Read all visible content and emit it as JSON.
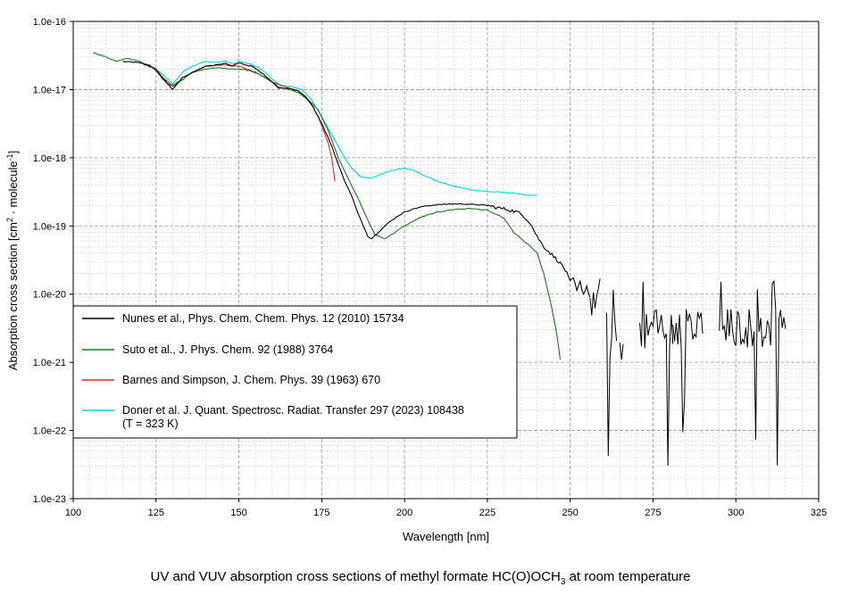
{
  "chart_data": {
    "type": "line",
    "title": "",
    "caption_main": "UV and VUV absorption cross sections of methyl formate HC(O)OCH",
    "caption_sub": "3",
    "caption_tail": " at room temperature",
    "xlabel": "Wavelength [nm]",
    "ylabel_main": "Absorption cross section [cm",
    "ylabel_sup1": "2",
    "ylabel_mid": " · molecule",
    "ylabel_sup2": "-1",
    "ylabel_end": "]",
    "xlim": [
      100,
      325
    ],
    "ylim": [
      1e-23,
      1e-16
    ],
    "yscale": "log",
    "grid": true,
    "legend_position": "lower-left",
    "x_ticks": [
      "100",
      "125",
      "150",
      "175",
      "200",
      "225",
      "250",
      "275",
      "300",
      "325"
    ],
    "y_ticks": [
      "1.0e-16",
      "1.0e-17",
      "1.0e-18",
      "1.0e-19",
      "1.0e-20",
      "1.0e-21",
      "1.0e-22",
      "1.0e-23"
    ],
    "series": [
      {
        "name": "Nunes et al., Phys. Chem. Chem. Phys. 12 (2010) 15734",
        "legend_line2": "",
        "color": "#000000",
        "x": [
          115,
          120,
          125,
          128,
          130,
          133,
          136,
          140,
          143,
          146,
          148,
          150,
          152,
          154,
          156,
          158,
          160,
          162,
          165,
          168,
          170,
          172,
          175,
          178,
          180,
          182,
          184,
          186,
          188,
          189,
          190,
          192,
          195,
          198,
          200,
          203,
          206,
          210,
          214,
          218,
          222,
          225,
          228,
          231,
          234,
          236,
          238,
          240,
          242,
          244,
          246,
          248,
          249,
          250,
          251,
          252,
          253,
          254,
          255,
          256
        ],
        "y": [
          2.6e-17,
          2.5e-17,
          2e-17,
          1.3e-17,
          1e-17,
          1.5e-17,
          1.8e-17,
          2.2e-17,
          2.3e-17,
          2.4e-17,
          2.2e-17,
          2.5e-17,
          2.3e-17,
          2.2e-17,
          1.9e-17,
          1.6e-17,
          1.3e-17,
          1.05e-17,
          1.05e-17,
          9.5e-18,
          8e-18,
          6e-18,
          3.2e-18,
          1.5e-18,
          8e-19,
          4.5e-19,
          2.8e-19,
          1.5e-19,
          9e-20,
          7e-20,
          6.5e-20,
          8e-20,
          1.1e-19,
          1.4e-19,
          1.6e-19,
          1.8e-19,
          1.95e-19,
          2.05e-19,
          2.1e-19,
          2.1e-19,
          2.05e-19,
          2e-19,
          1.85e-19,
          1.75e-19,
          1.6e-19,
          1.4e-19,
          1.1e-19,
          7e-20,
          5e-20,
          4e-20,
          3.2e-20,
          2.5e-20,
          2e-20,
          1.5e-20,
          1.7e-20,
          1.1e-20,
          1.5e-20,
          1e-20,
          1.3e-20,
          9e-21
        ]
      },
      {
        "name": "Suto et al., J. Phys. Chem. 92  (1988) 3764",
        "legend_line2": "",
        "color": "#1a7a1a",
        "x": [
          106,
          110,
          113,
          116,
          120,
          124,
          127,
          130,
          133,
          136,
          140,
          144,
          147,
          150,
          153,
          156,
          159,
          162,
          165,
          168,
          171,
          174,
          177,
          180,
          183,
          186,
          189,
          191,
          194,
          197,
          200,
          205,
          210,
          215,
          220,
          225,
          230,
          233,
          236,
          238,
          240,
          242,
          244,
          246,
          247
        ],
        "y": [
          3.5e-17,
          3e-17,
          2.6e-17,
          2.9e-17,
          2.6e-17,
          2.1e-17,
          1.5e-17,
          1.15e-17,
          1.4e-17,
          1.8e-17,
          2e-17,
          2.1e-17,
          2e-17,
          2e-17,
          1.9e-17,
          1.7e-17,
          1.4e-17,
          1.1e-17,
          1e-17,
          9e-18,
          7e-18,
          5e-18,
          2.5e-18,
          1e-18,
          5e-19,
          2.5e-19,
          1.2e-19,
          7.5e-20,
          6.5e-20,
          8e-20,
          1e-19,
          1.35e-19,
          1.6e-19,
          1.75e-19,
          1.8e-19,
          1.7e-19,
          1.3e-19,
          8e-20,
          6e-20,
          5e-20,
          4e-20,
          2e-20,
          8e-21,
          2.5e-21,
          1.1e-21
        ]
      },
      {
        "name": "Barnes and Simpson, J. Chem. Phys. 39 (1963) 670",
        "legend_line2": "",
        "color": "#d03020",
        "x": [
          120,
          123,
          125,
          127,
          130,
          133,
          136,
          140,
          145,
          150,
          155,
          160,
          165,
          168,
          170,
          172,
          174,
          176,
          177,
          178,
          179
        ],
        "y": [
          2.5e-17,
          2.3e-17,
          1.9e-17,
          1.4e-17,
          1.1e-17,
          1.4e-17,
          1.8e-17,
          2.2e-17,
          2.3e-17,
          2.2e-17,
          1.8e-17,
          1.3e-17,
          1.05e-17,
          9.5e-18,
          8e-18,
          6e-18,
          4e-18,
          2.2e-18,
          1.6e-18,
          1e-18,
          4.5e-19
        ]
      },
      {
        "name": "Doner et al. J. Quant. Spectrosc. Radiat. Transfer 297 (2023) 108438",
        "legend_line2": "(T = 323 K)",
        "color": "#00d8e8",
        "x": [
          125,
          128,
          130,
          133,
          136,
          140,
          143,
          146,
          148,
          150,
          153,
          156,
          158,
          160,
          163,
          166,
          169,
          172,
          175,
          178,
          181,
          184,
          187,
          190,
          193,
          196,
          200,
          203,
          206,
          210,
          215,
          220,
          225,
          230,
          234,
          237,
          240
        ],
        "y": [
          2e-17,
          1.5e-17,
          1.2e-17,
          1.8e-17,
          2.2e-17,
          2.6e-17,
          2.5e-17,
          2.6e-17,
          2.4e-17,
          2.6e-17,
          2.4e-17,
          2.1e-17,
          1.8e-17,
          1.4e-17,
          1.15e-17,
          1.1e-17,
          1e-17,
          7e-18,
          4e-18,
          2.2e-18,
          1.2e-18,
          7e-19,
          5.2e-19,
          5e-19,
          5.8e-19,
          6.5e-19,
          7e-19,
          6.5e-19,
          5.5e-19,
          4.5e-19,
          3.8e-19,
          3.4e-19,
          3.2e-19,
          3.1e-19,
          3e-19,
          2.8e-19,
          2.8e-19
        ]
      }
    ],
    "noisy_tail": {
      "series_index": 0,
      "x_range": [
        253,
        315
      ]
    }
  }
}
